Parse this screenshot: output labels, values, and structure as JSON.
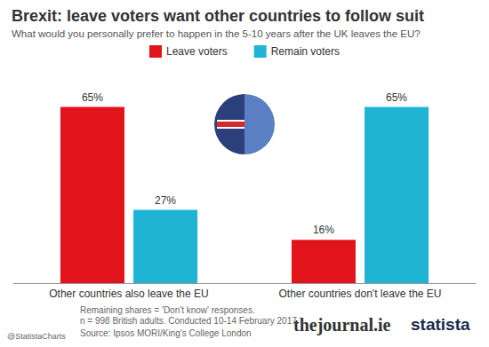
{
  "chart_data": {
    "type": "bar",
    "title": "Brexit: leave voters want other countries to follow suit",
    "subtitle": "What would you personally prefer to happen in the 5-10 years after the UK leaves the EU?",
    "categories": [
      "Other countries also leave the EU",
      "Other countries don't leave the EU"
    ],
    "series": [
      {
        "name": "Leave voters",
        "color": "#e3131b",
        "values": [
          65,
          16
        ],
        "value_labels": [
          "65%",
          "16%"
        ]
      },
      {
        "name": "Remain voters",
        "color": "#1fb3d4",
        "values": [
          27,
          65
        ],
        "value_labels": [
          "27%",
          "65%"
        ]
      }
    ],
    "ylim": [
      0,
      75
    ],
    "legend": "top",
    "data_labels": true,
    "tick_labels": "x",
    "grid": false,
    "notes": [
      "Remaining shares = 'Don't know' responses.",
      "n = 998 British adults. Conducted 10-14 February 2017."
    ],
    "source": "Source: Ipsos MORI/King's College London",
    "credit": "@StatistaCharts",
    "logos": [
      "thejournal.ie",
      "statista"
    ]
  }
}
